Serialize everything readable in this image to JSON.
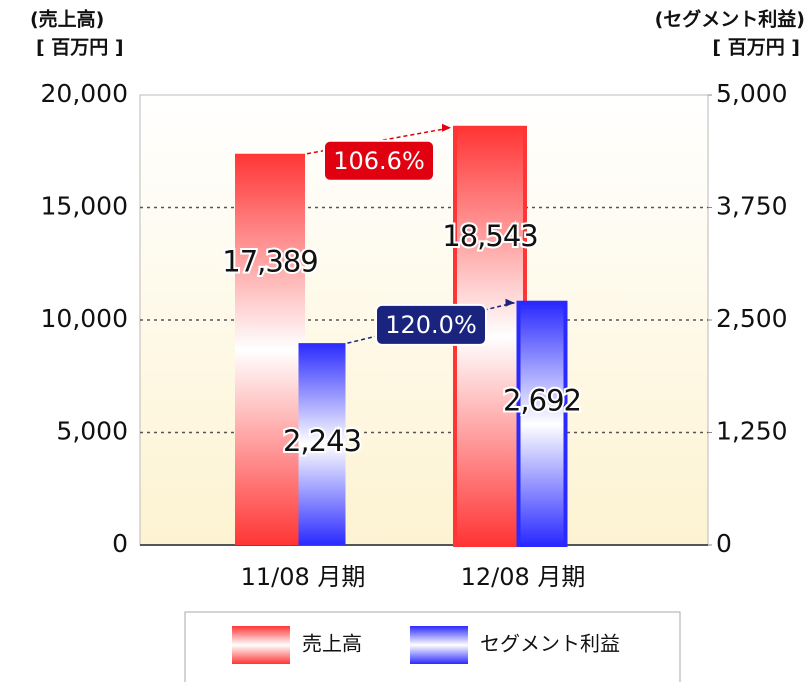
{
  "chart_data": {
    "type": "bar",
    "ylabel": "(売上高)",
    "yunit": "[ 百万円 ]",
    "y2label": "(セグメント利益)",
    "y2unit": "[ 百万円 ]",
    "categories": [
      "11/08 月期",
      "12/08 月期"
    ],
    "series": [
      {
        "name": "売上高",
        "color": "#ff3535",
        "values": [
          17389,
          18543
        ],
        "value_labels": [
          "17,389",
          "18,543"
        ]
      },
      {
        "name": "セグメント利益",
        "color": "#2a2aff",
        "axis": "y2",
        "values": [
          2243,
          2692
        ],
        "value_labels": [
          "2,243",
          "2,692"
        ]
      }
    ],
    "annotations": [
      "106.6%",
      "120.0%"
    ],
    "ylim": [
      0,
      20000
    ],
    "yticks": [
      0,
      {
        "value": 5000,
        "label": "5,000"
      },
      {
        "value": 10000,
        "label": "10,000"
      },
      {
        "value": 15000,
        "label": "15,000"
      },
      {
        "value": 20000,
        "label": "20,000"
      }
    ],
    "y2lim": [
      0,
      5000
    ],
    "y2ticks": [
      0,
      {
        "value": 1250,
        "label": "1,250"
      },
      {
        "value": 2500,
        "label": "2,500"
      },
      {
        "value": 3750,
        "label": "3,750"
      },
      {
        "value": 5000,
        "label": "5,000"
      }
    ],
    "grid": true,
    "legend": "bottom"
  }
}
